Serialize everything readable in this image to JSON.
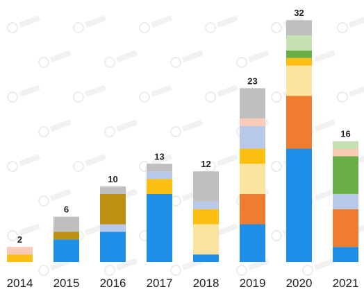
{
  "chart_data": {
    "type": "bar",
    "stacked": true,
    "categories": [
      "2014",
      "2015",
      "2016",
      "2017",
      "2018",
      "2019",
      "2020",
      "2021"
    ],
    "totals": [
      2,
      6,
      10,
      13,
      12,
      23,
      32,
      16
    ],
    "series": [
      {
        "color": "#1f8ee6",
        "values": [
          0,
          3,
          4,
          9,
          1,
          5,
          15,
          2
        ]
      },
      {
        "color": "#ee7d30",
        "values": [
          0,
          0,
          0,
          0,
          0,
          4,
          7,
          5
        ]
      },
      {
        "color": "#fbe3a0",
        "values": [
          0,
          0,
          0,
          0,
          4,
          4,
          4,
          0
        ]
      },
      {
        "color": "#fbbf12",
        "values": [
          1,
          0,
          0,
          2,
          2,
          2,
          1,
          0
        ]
      },
      {
        "color": "#b7c8ea",
        "values": [
          0,
          0,
          1,
          1,
          1,
          3,
          0,
          2
        ]
      },
      {
        "color": "#bf8f12",
        "values": [
          0,
          1,
          4,
          0,
          0,
          0,
          0,
          0
        ]
      },
      {
        "color": "#6aaf45",
        "values": [
          0,
          0,
          0,
          0,
          0,
          0,
          1,
          5
        ]
      },
      {
        "color": "#f8cbb6",
        "values": [
          1,
          0,
          0,
          0,
          0,
          1,
          0,
          1
        ]
      },
      {
        "color": "#c5e0b3",
        "values": [
          0,
          0,
          0,
          0,
          0,
          0,
          2,
          1
        ]
      },
      {
        "color": "#bfbfbf",
        "values": [
          0,
          2,
          1,
          1,
          4,
          4,
          2,
          0
        ]
      }
    ],
    "ylim": [
      0,
      32
    ],
    "grid": false,
    "legend": "none",
    "show_totals": true
  }
}
